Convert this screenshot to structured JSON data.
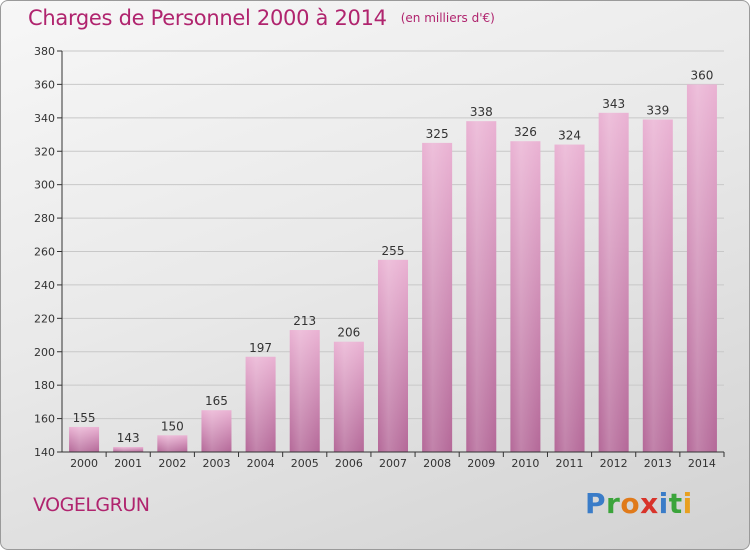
{
  "header": {
    "title": "Charges de Personnel 2000 à 2014",
    "units": "(en milliers d'€)"
  },
  "footer": {
    "town": "VOGELGRUN",
    "logo": "Proxiti"
  },
  "colors": {
    "title": "#b0246e",
    "bar_top": "#e8aed0",
    "bar_bottom": "#b86a9c"
  },
  "chart_data": {
    "type": "bar",
    "categories": [
      "2000",
      "2001",
      "2002",
      "2003",
      "2004",
      "2005",
      "2006",
      "2007",
      "2008",
      "2009",
      "2010",
      "2011",
      "2012",
      "2013",
      "2014"
    ],
    "values": [
      155,
      143,
      150,
      165,
      197,
      213,
      206,
      255,
      325,
      338,
      326,
      324,
      343,
      339,
      360
    ],
    "ylim": [
      140,
      380
    ],
    "yticks": [
      140,
      160,
      180,
      200,
      220,
      240,
      260,
      280,
      300,
      320,
      340,
      360,
      380
    ],
    "grid": "horizontal",
    "data_labels": true,
    "xlabel": "",
    "ylabel": ""
  }
}
